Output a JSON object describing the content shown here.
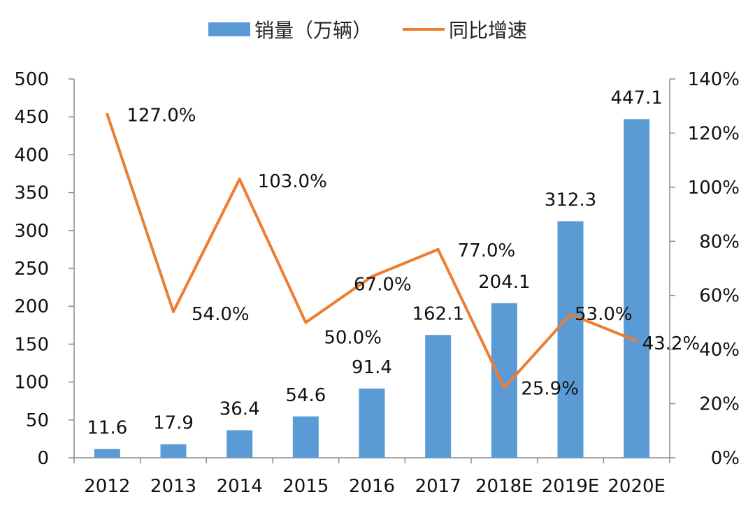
{
  "chart_data": {
    "type": "bar",
    "categories": [
      "2012",
      "2013",
      "2014",
      "2015",
      "2016",
      "2017",
      "2018E",
      "2019E",
      "2020E"
    ],
    "series": [
      {
        "name": "销量（万辆）",
        "type": "bar",
        "axis": "left",
        "values": [
          11.6,
          17.9,
          36.4,
          54.6,
          91.4,
          162.1,
          204.1,
          312.3,
          447.1
        ],
        "labels": [
          "11.6",
          "17.9",
          "36.4",
          "54.6",
          "91.4",
          "162.1",
          "204.1",
          "312.3",
          "447.1"
        ]
      },
      {
        "name": "同比增速",
        "type": "line",
        "axis": "right",
        "values": [
          127.0,
          54.0,
          103.0,
          50.0,
          67.0,
          77.0,
          25.9,
          53.0,
          43.2
        ],
        "labels": [
          "127.0%",
          "54.0%",
          "103.0%",
          "50.0%",
          "67.0%",
          "77.0%",
          "25.9%",
          "53.0%",
          "43.2%"
        ]
      }
    ],
    "ylim": [
      0,
      500
    ],
    "yticks": [
      "0",
      "50",
      "100",
      "150",
      "200",
      "250",
      "300",
      "350",
      "400",
      "450",
      "500"
    ],
    "y2lim": [
      0,
      140
    ],
    "y2ticks": [
      "0%",
      "20%",
      "40%",
      "60%",
      "80%",
      "100%",
      "120%",
      "140%"
    ],
    "colors": {
      "bar": "#5B9BD5",
      "line": "#ED7D31"
    },
    "legend": "top",
    "grid": false
  }
}
